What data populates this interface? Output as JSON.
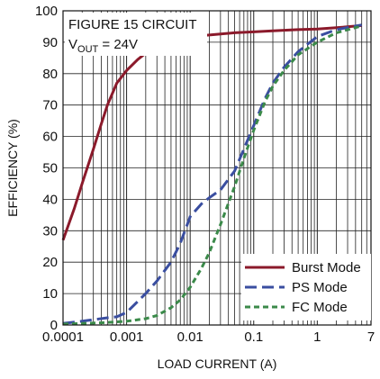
{
  "chart_data": {
    "type": "line",
    "title": "",
    "annotation_line1": "FIGURE 15 CIRCUIT",
    "annotation_vout_prefix": "V",
    "annotation_vout_sub": "OUT",
    "annotation_vout_suffix": " = 24V",
    "xlabel": "LOAD CURRENT (A)",
    "ylabel": "EFFICIENCY (%)",
    "x_scale": "log",
    "xlim": [
      0.0001,
      7
    ],
    "ylim": [
      0,
      100
    ],
    "x_ticks": [
      0.0001,
      0.001,
      0.01,
      0.1,
      1,
      7
    ],
    "x_tick_labels": [
      "0.0001",
      "0.001",
      "0.01",
      "0.1",
      "1",
      "7"
    ],
    "y_ticks": [
      0,
      10,
      20,
      30,
      40,
      50,
      60,
      70,
      80,
      90,
      100
    ],
    "y_tick_labels": [
      "0",
      "10",
      "20",
      "30",
      "40",
      "50",
      "60",
      "70",
      "80",
      "90",
      "100"
    ],
    "grid": true,
    "legend_position": "bottom-right",
    "series": [
      {
        "name": "Burst Mode",
        "color": "#8b1a2b",
        "dash": "solid",
        "x": [
          0.0001,
          0.00015,
          0.0002,
          0.0003,
          0.0004,
          0.0005,
          0.0007,
          0.001,
          0.0015,
          0.002,
          0.003,
          0.005,
          0.007,
          0.01,
          0.02,
          0.05,
          0.1,
          0.2,
          0.5,
          1,
          2,
          5
        ],
        "y": [
          27,
          37,
          45,
          56,
          64,
          70,
          77,
          81,
          84.5,
          86.5,
          88.5,
          90.8,
          91.6,
          91.8,
          92.3,
          93,
          93.3,
          93.6,
          94,
          94.2,
          94.6,
          95.3
        ]
      },
      {
        "name": "PS Mode",
        "color": "#3a4ea0",
        "dash": "long-dash",
        "x": [
          0.0001,
          0.0002,
          0.0003,
          0.0005,
          0.0007,
          0.001,
          0.0015,
          0.002,
          0.003,
          0.005,
          0.007,
          0.01,
          0.015,
          0.02,
          0.03,
          0.05,
          0.07,
          0.1,
          0.15,
          0.2,
          0.3,
          0.5,
          1,
          2,
          5
        ],
        "y": [
          0.5,
          1.2,
          1.7,
          2.3,
          2.6,
          4,
          7.5,
          10,
          14,
          20,
          26,
          34.5,
          38.5,
          40.5,
          43,
          49,
          56,
          63.5,
          72,
          77,
          82,
          87,
          91.8,
          94,
          95.5
        ]
      },
      {
        "name": "FC Mode",
        "color": "#3b8a4a",
        "dash": "short-dash",
        "x": [
          0.0001,
          0.0002,
          0.0005,
          0.001,
          0.002,
          0.003,
          0.005,
          0.007,
          0.01,
          0.015,
          0.02,
          0.03,
          0.05,
          0.07,
          0.1,
          0.15,
          0.2,
          0.3,
          0.5,
          1,
          2,
          5
        ],
        "y": [
          0.3,
          0.5,
          0.8,
          1.2,
          2,
          3,
          5.5,
          8,
          12,
          18,
          23,
          32,
          44,
          53,
          62,
          71,
          76,
          81,
          86,
          90,
          93,
          95.2
        ]
      }
    ]
  }
}
